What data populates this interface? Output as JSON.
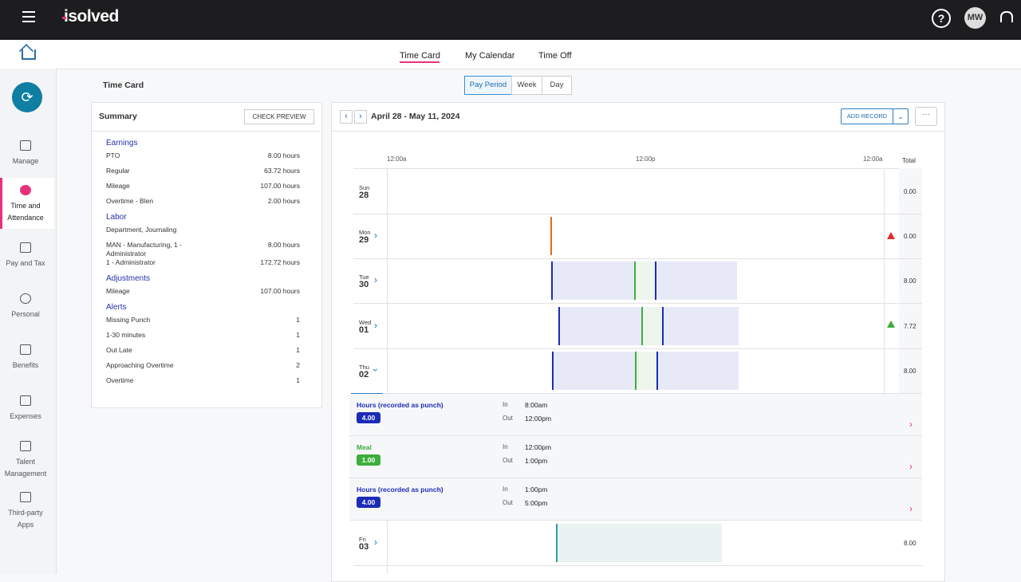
{
  "header": {
    "logo": "isolved",
    "avatar": "MW"
  },
  "tabs": [
    "Time Card",
    "My Calendar",
    "Time Off"
  ],
  "sidebar": [
    "Manage",
    "Time and Attendance",
    "Pay and Tax",
    "Personal",
    "Benefits",
    "Expenses",
    "Talent Management",
    "Third-party Apps"
  ],
  "page_title": "Time Card",
  "views": [
    "Pay Period",
    "Week",
    "Day"
  ],
  "summary": {
    "title": "Summary",
    "button": "CHECK PREVIEW",
    "sections": [
      {
        "heading": "Earnings",
        "rows": [
          [
            "PTO",
            "8.00 hours"
          ],
          [
            "Regular",
            "63.72 hours"
          ],
          [
            "Mileage",
            "107.00 hours"
          ],
          [
            "Overtime - Blen",
            "2.00 hours"
          ]
        ]
      },
      {
        "heading": "Labor",
        "rows": [
          [
            "Department, Journaling"
          ],
          [
            "MAN - Manufacturing, 1 - Administrator",
            "8.00 hours"
          ],
          [
            "1 - Administrator",
            "172.72 hours"
          ]
        ]
      },
      {
        "heading": "Adjustments",
        "rows": [
          [
            "Mileage",
            "107.00 hours"
          ]
        ]
      },
      {
        "heading": "Alerts",
        "rows": [
          [
            "Missing Punch",
            "1"
          ],
          [
            "1-30 minutes",
            "1"
          ],
          [
            "Out Late",
            "1"
          ],
          [
            "Approaching Overtime",
            "2"
          ],
          [
            "Overtime",
            "1"
          ]
        ]
      }
    ]
  },
  "timecard": {
    "range": "April 28 - May 11, 2024",
    "add_button": "ADD RECORD",
    "axis": [
      "12:00a",
      "12:00p",
      "12:00a"
    ],
    "total_label": "Total",
    "days": [
      {
        "dow": "Sun",
        "date": "28",
        "total": "0.00"
      },
      {
        "dow": "Mon",
        "date": "29",
        "total": "0.00"
      },
      {
        "dow": "Tue",
        "date": "30",
        "total": "8.00"
      },
      {
        "dow": "Wed",
        "date": "01",
        "total": "7.72"
      },
      {
        "dow": "Thu",
        "date": "02",
        "total": "8.00"
      },
      {
        "dow": "Fri",
        "date": "03",
        "total": "8.00"
      }
    ],
    "in_label": "In",
    "out_label": "Out",
    "entries": [
      {
        "label": "Hours (recorded as punch)",
        "hours": "4.00",
        "in": "8:00am",
        "out": "12:00pm",
        "color": "#1c2bb8"
      },
      {
        "label": "Meal",
        "hours": "1.00",
        "in": "12:00pm",
        "out": "1:00pm",
        "color": "#3cae3c"
      },
      {
        "label": "Hours (recorded as punch)",
        "hours": "4.00",
        "in": "1:00pm",
        "out": "5:00pm",
        "color": "#1c2bb8"
      }
    ]
  }
}
